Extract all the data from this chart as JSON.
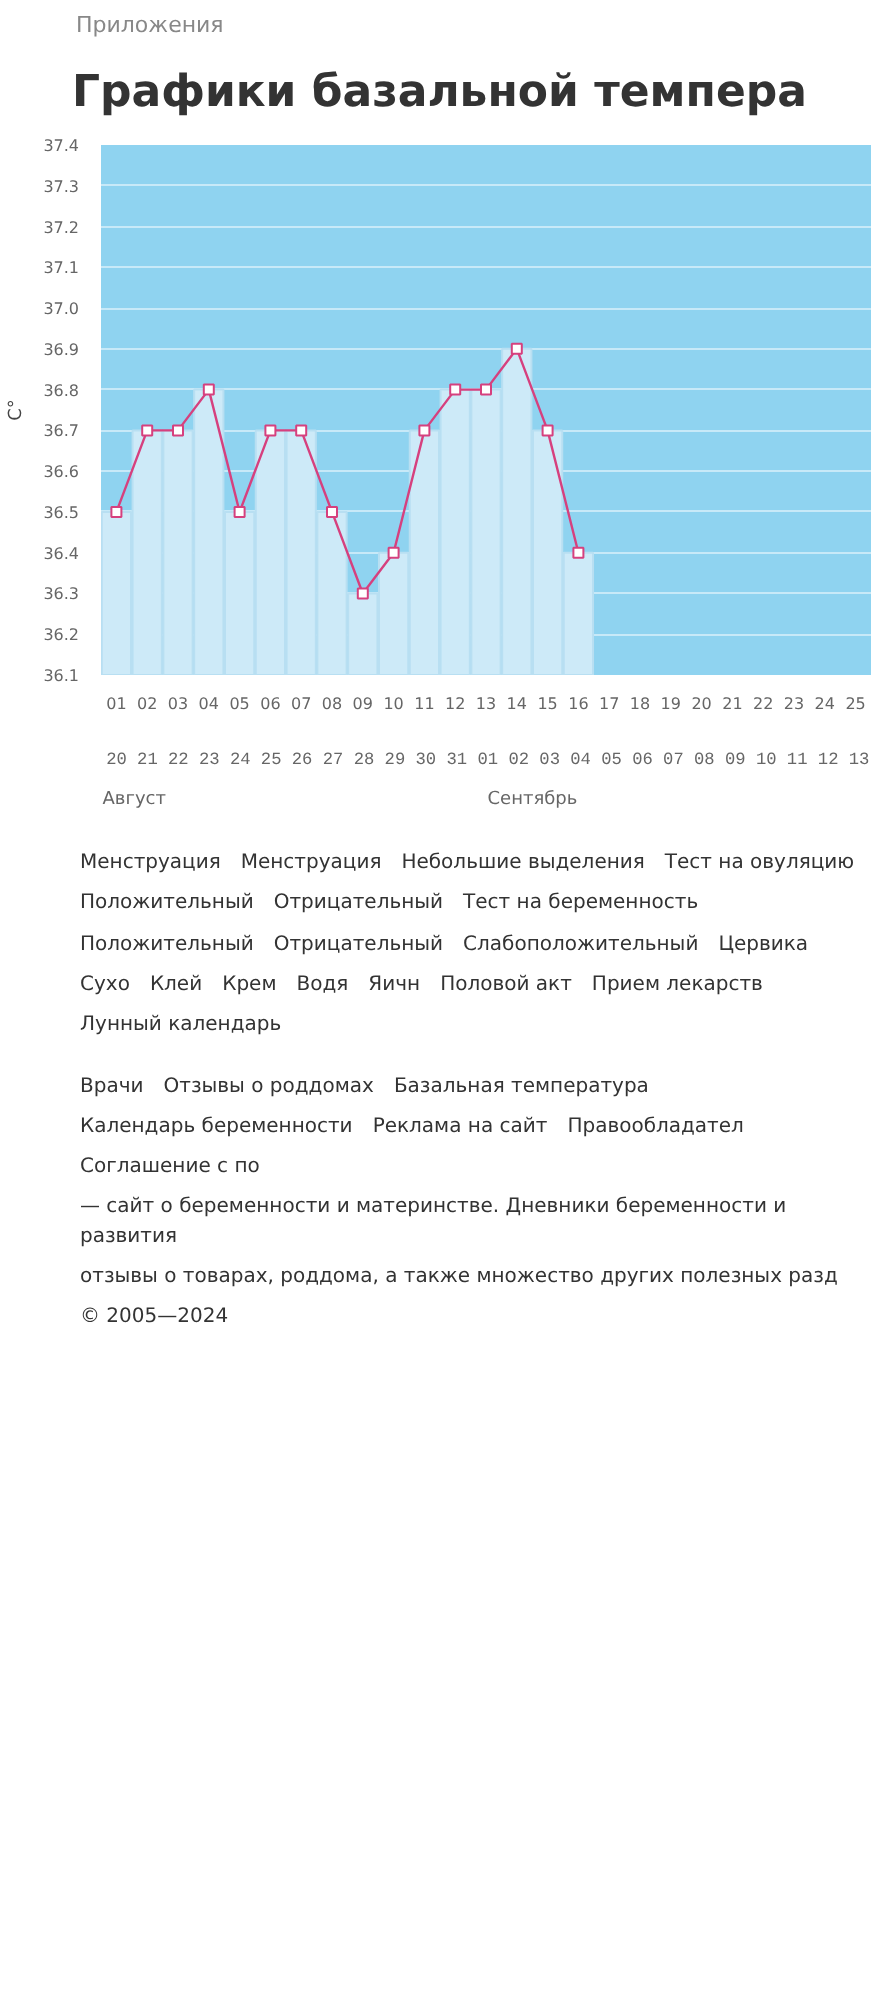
{
  "chart_data": [
    {
      "type": "bar",
      "title": "Графики базальной темпера",
      "subtitle": "Приложения",
      "ylabel": "C°",
      "categories": [
        "01",
        "02",
        "03",
        "04",
        "05",
        "06",
        "07",
        "08",
        "09",
        "10",
        "11",
        "12",
        "13",
        "14",
        "15",
        "16",
        "17",
        "18",
        "19",
        "20",
        "21",
        "22",
        "23",
        "24",
        "25"
      ],
      "series": [
        {
          "type": "bar",
          "color": "#cdeaf8",
          "values": [
            36.5,
            36.7,
            36.7,
            36.8,
            36.5,
            36.7,
            36.7,
            36.5,
            36.3,
            36.4,
            36.7,
            36.8,
            36.8,
            36.9,
            36.7,
            36.4,
            null,
            null,
            null,
            null,
            null,
            null,
            null,
            null,
            null
          ]
        },
        {
          "type": "line",
          "color": "#d6407e",
          "marker": "square",
          "values": [
            36.5,
            36.7,
            36.7,
            36.8,
            36.5,
            36.7,
            36.7,
            36.5,
            36.3,
            36.4,
            36.7,
            36.8,
            36.8,
            36.9,
            36.7,
            36.4,
            null,
            null,
            null,
            null,
            null,
            null,
            null,
            null,
            null
          ]
        }
      ],
      "ylim": [
        36.1,
        37.4
      ],
      "yticks": [
        36.1,
        36.2,
        36.3,
        36.4,
        36.5,
        36.6,
        36.7,
        36.8,
        36.9,
        {
          "value": 37.0,
          "label": "37.0"
        },
        37.1,
        37.2,
        37.3,
        37.4
      ],
      "grid": "y",
      "annotations": [
        "20 21 22 23 24 25 26 27 28 29 30 31 01 02 03 04 05 06 07 08 09 10 11 12 13",
        "Август",
        "Сентябрь"
      ]
    },
    {
      "type": "other",
      "annotations": [
        "Менструация",
        "Менструация",
        "Небольшие выделения",
        "Тест на овуляцию",
        "Положительный",
        "Отрицательный",
        "Тест на беременность",
        "Положительный",
        "Отрицательный",
        "Слабоположительный",
        "Цервика",
        "Сухо",
        "Клей",
        "Крем",
        "Водя",
        "Яичн",
        "Половой акт",
        "Прием лекарств",
        "Лунный календарь"
      ]
    },
    {
      "type": "other",
      "annotations": [
        "Врачи",
        "Отзывы о роддомах",
        "Базальная температура",
        "Календарь беременности",
        "Реклама на сайт",
        "Правообладател",
        "Соглашение с по",
        "— сайт о беременности и материнстве. Дневники беременности и развития",
        "отзывы о товарах, роддома, а также множество других полезных разд",
        "© 2005—2024"
      ]
    }
  ]
}
